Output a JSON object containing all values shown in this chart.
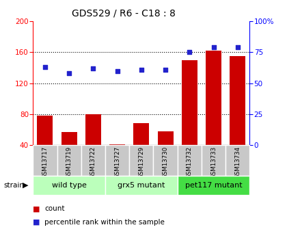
{
  "title": "GDS529 / R6 - C18 : 8",
  "samples": [
    "GSM13717",
    "GSM13719",
    "GSM13722",
    "GSM13727",
    "GSM13729",
    "GSM13730",
    "GSM13732",
    "GSM13733",
    "GSM13734"
  ],
  "counts": [
    78,
    57,
    80,
    41,
    68,
    58,
    150,
    162,
    155
  ],
  "percentiles": [
    63,
    58,
    62,
    60,
    61,
    61,
    75,
    79,
    79
  ],
  "strain_labels": [
    "wild type",
    "grx5 mutant",
    "pet117 mutant"
  ],
  "strain_starts": [
    0,
    3,
    6
  ],
  "strain_ends": [
    3,
    6,
    9
  ],
  "strain_colors": [
    "#bbffbb",
    "#bbffbb",
    "#44dd44"
  ],
  "ylim_left": [
    40,
    200
  ],
  "ylim_right": [
    0,
    100
  ],
  "yticks_left": [
    40,
    80,
    120,
    160,
    200
  ],
  "yticks_right": [
    0,
    25,
    50,
    75,
    100
  ],
  "ytick_labels_right": [
    "0",
    "25",
    "50",
    "75",
    "100%"
  ],
  "bar_color": "#cc0000",
  "scatter_color": "#2222cc",
  "label_bg_color": "#c8c8c8",
  "label_sep_color": "#ffffff"
}
